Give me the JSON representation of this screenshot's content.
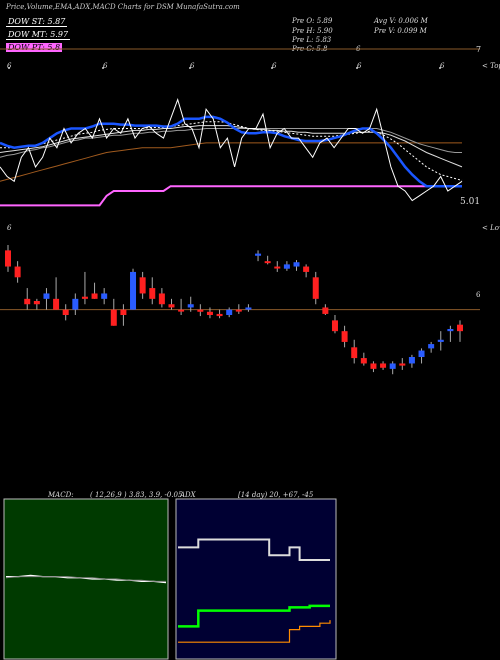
{
  "title": "Price,Volume,EMA,ADX,MACD Charts for DSM MunafaSutra.com",
  "dow": [
    {
      "label": "DOW ST: 5.87",
      "color": "#ffffff",
      "bg": "#000000",
      "text": "#ffffff"
    },
    {
      "label": "DOW MT: 5.97",
      "color": "#ffffff",
      "bg": "#000000",
      "text": "#ffffff"
    },
    {
      "label": "DOW PT: 5.8",
      "color": "#ff66ff",
      "bg": "#ff66ff",
      "text": "#000000"
    }
  ],
  "stats": {
    "pre_o": "Pre  O: 5.89",
    "pre_h": "Pre  H: 5.90",
    "pre_l": "Pre  L: 5.83",
    "pre_c": "Pre  C: 5.8",
    "pre_c_extra": "6",
    "avg_v": "Avg V: 0.006  M",
    "pre_v": "Pre  V: 0.099 M"
  },
  "labels": {
    "top_right_7": "7",
    "price_tag": "5.01",
    "topa": "< Topa",
    "lowest": "< Lowes",
    "six": "6",
    "tick_marks": [
      "6",
      "6",
      "6",
      "6",
      "6",
      "6",
      "6"
    ]
  },
  "macd": {
    "title": "MACD:",
    "params": "( 12,26,9 ) 3.83,  3.9,  -0.05"
  },
  "adx": {
    "title": "ADX",
    "params": "[14  day) 20,  +67,  -45"
  },
  "colors": {
    "ema_blue": "#1a56ff",
    "line_white": "#ffffff",
    "band_gray": "#9a9a9a",
    "band_brown": "#a05a1e",
    "dow_pt": "#ff66ff",
    "up": "#2a5cff",
    "down": "#ff2020",
    "ref_brown": "#8a5a2a",
    "macd_bg": "#003a00",
    "adx_bg": "#000033",
    "adx_green": "#00ff00",
    "adx_orange": "#ff8c00"
  },
  "chart_data": [
    {
      "type": "line",
      "name": "price-ema-overlay",
      "x": [
        0,
        1,
        2,
        3,
        4,
        5,
        6,
        7,
        8,
        9,
        10,
        11,
        12,
        13,
        14,
        15,
        16,
        17,
        18,
        19,
        20,
        21,
        22,
        23,
        24,
        25,
        26,
        27,
        28,
        29,
        30,
        31,
        32,
        33,
        34,
        35,
        36,
        37,
        38,
        39,
        40,
        41,
        42,
        43,
        44,
        45,
        46,
        47,
        48,
        49,
        50,
        51,
        52,
        53,
        54,
        55,
        56,
        57,
        58,
        59,
        60,
        61,
        62,
        63,
        64,
        65
      ],
      "series": [
        {
          "key": "price",
          "values": [
            6.2,
            6.1,
            6.05,
            6.3,
            6.4,
            6.2,
            6.3,
            6.5,
            6.4,
            6.6,
            6.45,
            6.55,
            6.6,
            6.5,
            6.7,
            6.5,
            6.6,
            6.55,
            6.7,
            6.5,
            6.6,
            6.62,
            6.55,
            6.5,
            6.7,
            6.9,
            6.65,
            6.6,
            6.4,
            6.8,
            6.7,
            6.4,
            6.5,
            6.2,
            6.5,
            6.6,
            6.6,
            6.75,
            6.4,
            6.55,
            6.6,
            6.5,
            6.5,
            6.4,
            6.3,
            6.45,
            6.5,
            6.4,
            6.5,
            6.6,
            6.6,
            6.55,
            6.6,
            6.8,
            6.5,
            6.2,
            6.0,
            5.95,
            5.85,
            5.9,
            5.95,
            6.0,
            6.1,
            5.95,
            6.0,
            6.05
          ]
        },
        {
          "key": "ema_fast",
          "values": [
            6.45,
            6.42,
            6.4,
            6.41,
            6.42,
            6.42,
            6.45,
            6.5,
            6.55,
            6.58,
            6.6,
            6.6,
            6.6,
            6.62,
            6.65,
            6.65,
            6.65,
            6.64,
            6.64,
            6.63,
            6.63,
            6.63,
            6.63,
            6.62,
            6.62,
            6.65,
            6.7,
            6.7,
            6.7,
            6.72,
            6.72,
            6.7,
            6.66,
            6.6,
            6.56,
            6.55,
            6.55,
            6.56,
            6.56,
            6.55,
            6.52,
            6.5,
            6.48,
            6.47,
            6.47,
            6.47,
            6.48,
            6.5,
            6.52,
            6.55,
            6.58,
            6.6,
            6.6,
            6.55,
            6.48,
            6.4,
            6.3,
            6.2,
            6.12,
            6.05,
            6.0,
            6.0,
            6.0,
            6.0,
            6.0,
            6.0
          ]
        },
        {
          "key": "ema_mid",
          "values": [
            6.4,
            6.4,
            6.4,
            6.41,
            6.42,
            6.43,
            6.44,
            6.46,
            6.48,
            6.5,
            6.52,
            6.54,
            6.55,
            6.56,
            6.58,
            6.59,
            6.6,
            6.6,
            6.6,
            6.6,
            6.6,
            6.61,
            6.61,
            6.61,
            6.62,
            6.63,
            6.64,
            6.65,
            6.66,
            6.67,
            6.67,
            6.67,
            6.66,
            6.64,
            6.62,
            6.6,
            6.59,
            6.58,
            6.58,
            6.57,
            6.56,
            6.55,
            6.54,
            6.53,
            6.52,
            6.52,
            6.52,
            6.52,
            6.53,
            6.54,
            6.55,
            6.56,
            6.57,
            6.56,
            6.53,
            6.49,
            6.44,
            6.38,
            6.32,
            6.26,
            6.2,
            6.16,
            6.12,
            6.1,
            6.08,
            6.06
          ]
        },
        {
          "key": "ema_slow",
          "values": [
            6.35,
            6.36,
            6.37,
            6.38,
            6.39,
            6.4,
            6.41,
            6.43,
            6.45,
            6.47,
            6.49,
            6.5,
            6.51,
            6.52,
            6.53,
            6.54,
            6.55,
            6.56,
            6.57,
            6.58,
            6.58,
            6.59,
            6.59,
            6.6,
            6.6,
            6.61,
            6.62,
            6.62,
            6.63,
            6.63,
            6.63,
            6.63,
            6.63,
            6.62,
            6.61,
            6.6,
            6.59,
            6.59,
            6.58,
            6.58,
            6.57,
            6.57,
            6.56,
            6.56,
            6.55,
            6.55,
            6.55,
            6.55,
            6.55,
            6.55,
            6.56,
            6.56,
            6.56,
            6.56,
            6.55,
            6.53,
            6.5,
            6.47,
            6.43,
            6.39,
            6.35,
            6.32,
            6.29,
            6.26,
            6.23,
            6.2
          ]
        },
        {
          "key": "band_gray",
          "values": [
            6.3,
            6.32,
            6.33,
            6.35,
            6.37,
            6.38,
            6.4,
            6.41,
            6.43,
            6.45,
            6.47,
            6.48,
            6.5,
            6.5,
            6.51,
            6.52,
            6.53,
            6.53,
            6.54,
            6.55,
            6.55,
            6.56,
            6.56,
            6.57,
            6.57,
            6.58,
            6.58,
            6.59,
            6.59,
            6.6,
            6.6,
            6.6,
            6.6,
            6.6,
            6.6,
            6.6,
            6.6,
            6.6,
            6.6,
            6.6,
            6.6,
            6.6,
            6.6,
            6.6,
            6.6,
            6.6,
            6.6,
            6.6,
            6.6,
            6.6,
            6.6,
            6.6,
            6.6,
            6.6,
            6.58,
            6.56,
            6.53,
            6.5,
            6.47,
            6.44,
            6.42,
            6.4,
            6.38,
            6.36,
            6.35,
            6.35
          ]
        },
        {
          "key": "band_brown",
          "values": [
            6.05,
            6.07,
            6.09,
            6.11,
            6.13,
            6.15,
            6.17,
            6.19,
            6.21,
            6.23,
            6.25,
            6.27,
            6.29,
            6.31,
            6.33,
            6.35,
            6.36,
            6.37,
            6.38,
            6.39,
            6.4,
            6.4,
            6.4,
            6.4,
            6.4,
            6.41,
            6.42,
            6.43,
            6.44,
            6.45,
            6.45,
            6.45,
            6.45,
            6.45,
            6.45,
            6.45,
            6.45,
            6.45,
            6.45,
            6.45,
            6.45,
            6.45,
            6.45,
            6.45,
            6.45,
            6.45,
            6.45,
            6.45,
            6.45,
            6.45,
            6.45,
            6.45,
            6.45,
            6.45,
            6.45,
            6.45,
            6.45,
            6.45,
            6.45,
            6.45,
            6.45,
            6.45,
            6.45,
            6.45,
            6.45,
            6.45
          ]
        },
        {
          "key": "dow_pt",
          "values": [
            5.8,
            5.8,
            5.8,
            5.8,
            5.8,
            5.8,
            5.8,
            5.8,
            5.8,
            5.8,
            5.8,
            5.8,
            5.8,
            5.8,
            5.8,
            5.9,
            5.95,
            5.95,
            5.95,
            5.95,
            5.95,
            5.95,
            5.95,
            5.95,
            6.0,
            6.0,
            6.0,
            6.0,
            6.0,
            6.0,
            6.0,
            6.0,
            6.0,
            6.0,
            6.0,
            6.0,
            6.0,
            6.0,
            6.0,
            6.0,
            6.0,
            6.0,
            6.0,
            6.0,
            6.0,
            6.0,
            6.0,
            6.0,
            6.0,
            6.0,
            6.0,
            6.0,
            6.0,
            6.0,
            6.0,
            6.0,
            6.0,
            6.0,
            6.0,
            6.0,
            6.0,
            6.0,
            6.0,
            6.0,
            6.0,
            6.0
          ]
        }
      ]
    },
    {
      "type": "candlestick",
      "name": "price-candles",
      "ref_value": 6.0,
      "ylim": [
        5.0,
        6.6
      ],
      "candles": [
        {
          "o": 6.55,
          "h": 6.6,
          "l": 6.35,
          "c": 6.4,
          "dir": "down"
        },
        {
          "o": 6.4,
          "h": 6.45,
          "l": 6.25,
          "c": 6.3,
          "dir": "down"
        },
        {
          "o": 6.1,
          "h": 6.2,
          "l": 6.0,
          "c": 6.05,
          "dir": "down"
        },
        {
          "o": 6.05,
          "h": 6.1,
          "l": 6.0,
          "c": 6.08,
          "dir": "down"
        },
        {
          "o": 6.1,
          "h": 6.2,
          "l": 6.0,
          "c": 6.15,
          "dir": "up"
        },
        {
          "o": 6.1,
          "h": 6.3,
          "l": 6.0,
          "c": 6.0,
          "dir": "down"
        },
        {
          "o": 5.95,
          "h": 6.05,
          "l": 5.9,
          "c": 6.0,
          "dir": "down"
        },
        {
          "o": 6.0,
          "h": 6.15,
          "l": 5.95,
          "c": 6.1,
          "dir": "up"
        },
        {
          "o": 6.1,
          "h": 6.35,
          "l": 6.05,
          "c": 6.12,
          "dir": "down"
        },
        {
          "o": 6.15,
          "h": 6.25,
          "l": 6.1,
          "c": 6.1,
          "dir": "down"
        },
        {
          "o": 6.1,
          "h": 6.2,
          "l": 6.05,
          "c": 6.15,
          "dir": "up"
        },
        {
          "o": 6.0,
          "h": 6.1,
          "l": 5.85,
          "c": 5.85,
          "dir": "down"
        },
        {
          "o": 5.95,
          "h": 6.05,
          "l": 5.85,
          "c": 6.0,
          "dir": "down"
        },
        {
          "o": 6.0,
          "h": 6.38,
          "l": 6.0,
          "c": 6.35,
          "dir": "up"
        },
        {
          "o": 6.3,
          "h": 6.35,
          "l": 6.1,
          "c": 6.15,
          "dir": "down"
        },
        {
          "o": 6.2,
          "h": 6.3,
          "l": 6.05,
          "c": 6.1,
          "dir": "down"
        },
        {
          "o": 6.15,
          "h": 6.2,
          "l": 6.02,
          "c": 6.05,
          "dir": "down"
        },
        {
          "o": 6.05,
          "h": 6.1,
          "l": 6.0,
          "c": 6.02,
          "dir": "down"
        },
        {
          "o": 6.0,
          "h": 6.1,
          "l": 5.95,
          "c": 6.0,
          "dir": "down"
        },
        {
          "o": 6.02,
          "h": 6.12,
          "l": 5.98,
          "c": 6.05,
          "dir": "up"
        },
        {
          "o": 6.0,
          "h": 6.05,
          "l": 5.94,
          "c": 5.98,
          "dir": "down"
        },
        {
          "o": 5.98,
          "h": 6.02,
          "l": 5.92,
          "c": 5.95,
          "dir": "down"
        },
        {
          "o": 5.96,
          "h": 6.0,
          "l": 5.92,
          "c": 5.94,
          "dir": "down"
        },
        {
          "o": 5.95,
          "h": 6.02,
          "l": 5.93,
          "c": 6.0,
          "dir": "up"
        },
        {
          "o": 6.0,
          "h": 6.05,
          "l": 5.96,
          "c": 6.0,
          "dir": "down"
        },
        {
          "o": 6.0,
          "h": 6.05,
          "l": 5.98,
          "c": 6.02,
          "dir": "up"
        },
        {
          "o": 6.5,
          "h": 6.55,
          "l": 6.45,
          "c": 6.52,
          "dir": "up"
        },
        {
          "o": 6.45,
          "h": 6.5,
          "l": 6.42,
          "c": 6.45,
          "dir": "down"
        },
        {
          "o": 6.4,
          "h": 6.45,
          "l": 6.35,
          "c": 6.4,
          "dir": "down"
        },
        {
          "o": 6.38,
          "h": 6.45,
          "l": 6.36,
          "c": 6.42,
          "dir": "up"
        },
        {
          "o": 6.4,
          "h": 6.46,
          "l": 6.36,
          "c": 6.44,
          "dir": "up"
        },
        {
          "o": 6.4,
          "h": 6.42,
          "l": 6.3,
          "c": 6.35,
          "dir": "down"
        },
        {
          "o": 6.3,
          "h": 6.35,
          "l": 6.05,
          "c": 6.1,
          "dir": "down"
        },
        {
          "o": 6.02,
          "h": 6.05,
          "l": 5.95,
          "c": 5.96,
          "dir": "down"
        },
        {
          "o": 5.9,
          "h": 5.95,
          "l": 5.78,
          "c": 5.8,
          "dir": "down"
        },
        {
          "o": 5.8,
          "h": 5.85,
          "l": 5.65,
          "c": 5.7,
          "dir": "down"
        },
        {
          "o": 5.65,
          "h": 5.72,
          "l": 5.5,
          "c": 5.55,
          "dir": "down"
        },
        {
          "o": 5.55,
          "h": 5.6,
          "l": 5.48,
          "c": 5.5,
          "dir": "down"
        },
        {
          "o": 5.5,
          "h": 5.52,
          "l": 5.42,
          "c": 5.45,
          "dir": "down"
        },
        {
          "o": 5.5,
          "h": 5.52,
          "l": 5.44,
          "c": 5.46,
          "dir": "down"
        },
        {
          "o": 5.45,
          "h": 5.52,
          "l": 5.4,
          "c": 5.5,
          "dir": "up"
        },
        {
          "o": 5.5,
          "h": 5.55,
          "l": 5.44,
          "c": 5.48,
          "dir": "down"
        },
        {
          "o": 5.5,
          "h": 5.58,
          "l": 5.46,
          "c": 5.56,
          "dir": "up"
        },
        {
          "o": 5.56,
          "h": 5.64,
          "l": 5.5,
          "c": 5.62,
          "dir": "up"
        },
        {
          "o": 5.64,
          "h": 5.7,
          "l": 5.6,
          "c": 5.68,
          "dir": "up"
        },
        {
          "o": 5.7,
          "h": 5.8,
          "l": 5.62,
          "c": 5.72,
          "dir": "up"
        },
        {
          "o": 5.8,
          "h": 5.85,
          "l": 5.7,
          "c": 5.82,
          "dir": "up"
        },
        {
          "o": 5.86,
          "h": 5.9,
          "l": 5.7,
          "c": 5.8,
          "dir": "down"
        }
      ]
    },
    {
      "type": "line",
      "name": "macd",
      "series": [
        {
          "key": "macd",
          "values": [
            0.02,
            0.02,
            0.03,
            0.02,
            0.02,
            0.01,
            0.01,
            0.0,
            0.0,
            -0.01,
            -0.01,
            -0.02,
            -0.02,
            -0.03
          ]
        },
        {
          "key": "signal",
          "values": [
            0.01,
            0.02,
            0.02,
            0.02,
            0.02,
            0.02,
            0.01,
            0.01,
            0.0,
            0.0,
            -0.01,
            -0.01,
            -0.02,
            -0.02
          ]
        }
      ]
    },
    {
      "type": "line",
      "name": "adx",
      "series": [
        {
          "key": "adx",
          "values": [
            70,
            70,
            75,
            75,
            75,
            75,
            75,
            75,
            75,
            65,
            65,
            70,
            62,
            62,
            62,
            62
          ]
        },
        {
          "key": "plus_di",
          "values": [
            20,
            20,
            30,
            30,
            30,
            30,
            30,
            30,
            30,
            30,
            30,
            32,
            32,
            33,
            33,
            33
          ]
        },
        {
          "key": "minus_di",
          "values": [
            10,
            10,
            10,
            10,
            10,
            10,
            10,
            10,
            10,
            10,
            10,
            18,
            20,
            20,
            22,
            24
          ]
        }
      ]
    }
  ]
}
